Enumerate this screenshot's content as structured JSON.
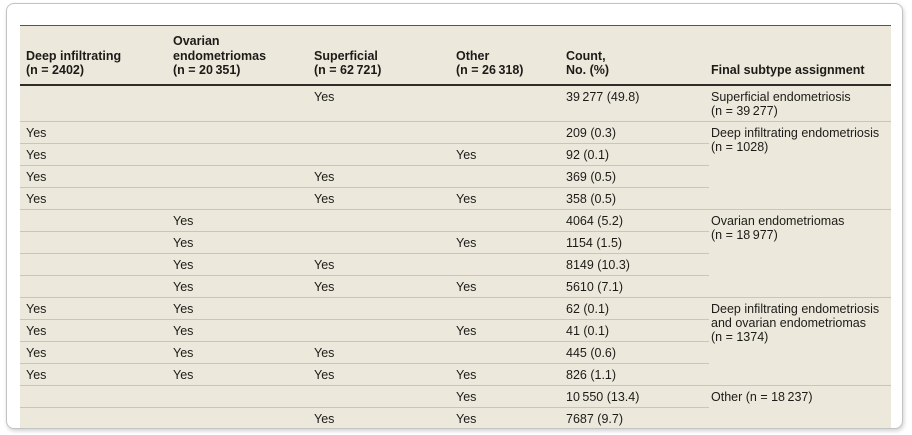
{
  "table": {
    "columns": [
      {
        "label": "Deep infiltrating\n(n = 2402)"
      },
      {
        "label": "Ovarian\nendometriomas\n(n = 20 351)"
      },
      {
        "label": "Superficial\n(n = 62 721)"
      },
      {
        "label": "Other\n(n = 26 318)"
      },
      {
        "label": "Count,\nNo. (%)"
      },
      {
        "label": "Final subtype assignment"
      }
    ],
    "yes_label": "Yes",
    "rows": [
      {
        "deep": "",
        "ovarian": "",
        "superficial": "Yes",
        "other": "",
        "count": "39 277 (49.8)"
      },
      {
        "deep": "Yes",
        "ovarian": "",
        "superficial": "",
        "other": "",
        "count": "209 (0.3)"
      },
      {
        "deep": "Yes",
        "ovarian": "",
        "superficial": "",
        "other": "Yes",
        "count": "92 (0.1)"
      },
      {
        "deep": "Yes",
        "ovarian": "",
        "superficial": "Yes",
        "other": "",
        "count": "369 (0.5)"
      },
      {
        "deep": "Yes",
        "ovarian": "",
        "superficial": "Yes",
        "other": "Yes",
        "count": "358 (0.5)"
      },
      {
        "deep": "",
        "ovarian": "Yes",
        "superficial": "",
        "other": "",
        "count": "4064 (5.2)"
      },
      {
        "deep": "",
        "ovarian": "Yes",
        "superficial": "",
        "other": "Yes",
        "count": "1154 (1.5)"
      },
      {
        "deep": "",
        "ovarian": "Yes",
        "superficial": "Yes",
        "other": "",
        "count": "8149 (10.3)"
      },
      {
        "deep": "",
        "ovarian": "Yes",
        "superficial": "Yes",
        "other": "Yes",
        "count": "5610 (7.1)"
      },
      {
        "deep": "Yes",
        "ovarian": "Yes",
        "superficial": "",
        "other": "",
        "count": "62 (0.1)"
      },
      {
        "deep": "Yes",
        "ovarian": "Yes",
        "superficial": "",
        "other": "Yes",
        "count": "41 (0.1)"
      },
      {
        "deep": "Yes",
        "ovarian": "Yes",
        "superficial": "Yes",
        "other": "",
        "count": "445 (0.6)"
      },
      {
        "deep": "Yes",
        "ovarian": "Yes",
        "superficial": "Yes",
        "other": "Yes",
        "count": "826 (1.1)"
      },
      {
        "deep": "",
        "ovarian": "",
        "superficial": "",
        "other": "Yes",
        "count": "10 550 (13.4)"
      },
      {
        "deep": "",
        "ovarian": "",
        "superficial": "Yes",
        "other": "Yes",
        "count": "7687 (9.7)"
      }
    ],
    "groups": [
      {
        "start": 0,
        "span": 1,
        "label": "Superficial endometriosis\n(n = 39 277)"
      },
      {
        "start": 1,
        "span": 4,
        "label": "Deep infiltrating endometriosis\n(n = 1028)"
      },
      {
        "start": 5,
        "span": 4,
        "label": "Ovarian endometriomas\n(n = 18 977)"
      },
      {
        "start": 9,
        "span": 4,
        "label": "Deep infiltrating endometriosis\nand ovarian endometriomas\n(n = 1374)"
      },
      {
        "start": 13,
        "span": 2,
        "label": "Other (n = 18 237)"
      }
    ]
  },
  "colors": {
    "table_background": "#ECE9DC",
    "thin_rule": "#C9C6B5",
    "dark_rule": "#2E2D28",
    "text": "#1C1B18"
  }
}
